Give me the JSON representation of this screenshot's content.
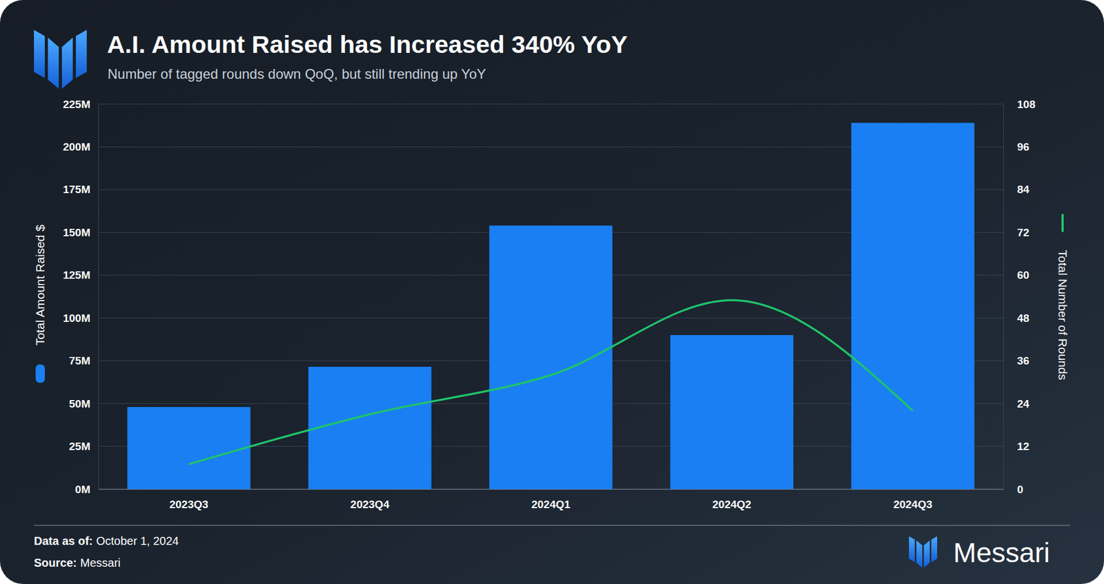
{
  "chart_data": {
    "type": "bar",
    "title": "A.I. Amount Raised has Increased 340% YoY",
    "subtitle": "Number of tagged rounds down QoQ, but still trending up YoY",
    "categories": [
      "2023Q3",
      "2023Q4",
      "2024Q1",
      "2024Q2",
      "2024Q3"
    ],
    "series": [
      {
        "name": "Total Amount Raised $",
        "type": "bar",
        "color": "#1a7ff2",
        "values": [
          48000000,
          71500000,
          154000000,
          90000000,
          214000000
        ]
      },
      {
        "name": "Total Number of Rounds",
        "type": "line",
        "axis": "y2",
        "color": "#1fc46a",
        "values": [
          7,
          21,
          32,
          53,
          22
        ]
      }
    ],
    "ylim": [
      0,
      225000000
    ],
    "yticks": [
      {
        "value": 0,
        "label": "0M"
      },
      {
        "value": 25000000,
        "label": "25M"
      },
      {
        "value": 50000000,
        "label": "50M"
      },
      {
        "value": 75000000,
        "label": "75M"
      },
      {
        "value": 100000000,
        "label": "100M"
      },
      {
        "value": 125000000,
        "label": "125M"
      },
      {
        "value": 150000000,
        "label": "150M"
      },
      {
        "value": 175000000,
        "label": "175M"
      },
      {
        "value": 200000000,
        "label": "200M"
      },
      {
        "value": 225000000,
        "label": "225M"
      }
    ],
    "y2lim": [
      0,
      108
    ],
    "y2ticks": [
      0,
      12,
      24,
      36,
      48,
      60,
      72,
      84,
      96,
      108
    ],
    "grid": true,
    "notes": [
      {
        "label": "Data as of:",
        "text": "October 1, 2024"
      },
      {
        "label": "Source:",
        "text": "Messari"
      }
    ],
    "brand": "Messari"
  }
}
